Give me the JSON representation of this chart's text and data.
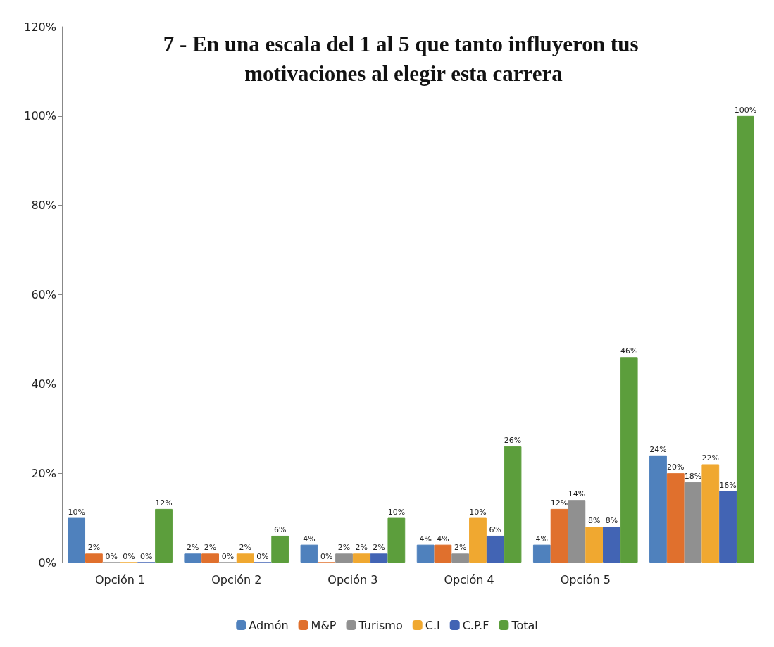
{
  "chart_data": {
    "type": "bar",
    "title": "7 - En una escala del 1 al 5 que tanto influyeron tus motivaciones al elegir esta carrera",
    "categories": [
      "Opción 1",
      "Opción 2",
      "Opción 3",
      "Opción 4",
      "Opción 5",
      null
    ],
    "series": [
      {
        "name": "Admón",
        "color": "#4f81bd",
        "values": [
          10,
          2,
          4,
          4,
          4,
          24
        ],
        "value_labels": [
          "10%",
          "2%",
          "4%",
          "4%",
          "4%",
          "24%"
        ]
      },
      {
        "name": "M&P",
        "color": "#e0702d",
        "values": [
          2,
          2,
          0,
          4,
          12,
          20
        ],
        "value_labels": [
          "2%",
          "2%",
          "0%",
          "4%",
          "12%",
          "20%"
        ]
      },
      {
        "name": "Turismo",
        "color": "#909090",
        "values": [
          0,
          0,
          2,
          2,
          14,
          18
        ],
        "value_labels": [
          "0%",
          "0%",
          "2%",
          "2%",
          "14%",
          "18%"
        ]
      },
      {
        "name": "C.I",
        "color": "#f0a830",
        "values": [
          0,
          2,
          2,
          10,
          8,
          22
        ],
        "value_labels": [
          "0%",
          "2%",
          "2%",
          "10%",
          "8%",
          "22%"
        ]
      },
      {
        "name": "C.P.F",
        "color": "#4264b4",
        "values": [
          0,
          0,
          2,
          6,
          8,
          16
        ],
        "value_labels": [
          "0%",
          "0%",
          "2%",
          "6%",
          "8%",
          "16%"
        ]
      },
      {
        "name": "Total",
        "color": "#5c9e3c",
        "values": [
          12,
          6,
          10,
          26,
          46,
          100
        ],
        "value_labels": [
          "12%",
          "6%",
          "10%",
          "26%",
          "46%",
          "100%"
        ]
      }
    ],
    "ylim": [
      0,
      120
    ],
    "yticks": [
      {
        "value": 0,
        "label": "0%"
      },
      {
        "value": 20,
        "label": "20%"
      },
      {
        "value": 40,
        "label": "40%"
      },
      {
        "value": 60,
        "label": "60%"
      },
      {
        "value": 80,
        "label": "80%"
      },
      {
        "value": 100,
        "label": "100%"
      },
      {
        "value": 120,
        "label": "120%"
      }
    ],
    "grid": false,
    "legend": "bottom"
  }
}
